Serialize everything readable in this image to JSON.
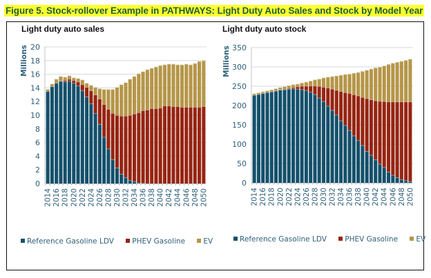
{
  "figure_title": "Figure 5. Stock-rollover Example in PATHWAYS: Light Duty Auto Sales and Stock by Model Year",
  "colors": {
    "reference": "#14506b",
    "phev": "#962512",
    "ev": "#b59649",
    "title_highlight": "#ffff33",
    "title_text": "#1f5f35",
    "axis_text": "#2f5f7a"
  },
  "chart_data": [
    {
      "type": "bar",
      "stacked": true,
      "title": "Light duty auto sales",
      "xlabel": "",
      "ylabel": "Millions",
      "ylim": [
        0,
        20
      ],
      "yticks": [
        0,
        2,
        4,
        6,
        8,
        10,
        12,
        14,
        16,
        18,
        20
      ],
      "grid": true,
      "legend_position": "bottom",
      "categories": [
        "2014",
        "2015",
        "2016",
        "2017",
        "2018",
        "2019",
        "2020",
        "2021",
        "2022",
        "2023",
        "2024",
        "2025",
        "2026",
        "2027",
        "2028",
        "2029",
        "2030",
        "2031",
        "2032",
        "2033",
        "2034",
        "2035",
        "2036",
        "2037",
        "2038",
        "2039",
        "2040",
        "2041",
        "2042",
        "2043",
        "2044",
        "2045",
        "2046",
        "2047",
        "2048",
        "2049",
        "2050"
      ],
      "xtick_labels": [
        "2014",
        "2016",
        "2018",
        "2020",
        "2022",
        "2024",
        "2026",
        "2028",
        "2030",
        "2032",
        "2034",
        "2036",
        "2038",
        "2040",
        "2042",
        "2044",
        "2046",
        "2048",
        "2050"
      ],
      "series": [
        {
          "name": "Reference Gasoline LDV",
          "values": [
            13.5,
            14.2,
            14.7,
            15.0,
            14.9,
            15.0,
            14.7,
            14.3,
            13.6,
            12.7,
            11.7,
            10.3,
            8.7,
            6.8,
            5.1,
            3.5,
            2.3,
            1.4,
            0.9,
            0.5,
            0.3,
            0.1,
            0.05,
            0,
            0,
            0,
            0,
            0,
            0,
            0,
            0,
            0,
            0,
            0,
            0,
            0,
            0
          ]
        },
        {
          "name": "PHEV Gasoline",
          "values": [
            0,
            0,
            0,
            0.05,
            0.2,
            0.3,
            0.4,
            0.6,
            0.9,
            1.4,
            1.9,
            2.7,
            3.7,
            4.8,
            5.8,
            6.8,
            7.7,
            8.5,
            9.0,
            9.5,
            9.9,
            10.3,
            10.65,
            10.8,
            11.0,
            11.0,
            11.1,
            11.4,
            11.4,
            11.3,
            11.3,
            11.2,
            11.2,
            11.2,
            11.2,
            11.2,
            11.3
          ]
        },
        {
          "name": "EV",
          "values": [
            0.3,
            0.4,
            0.6,
            0.65,
            0.5,
            0.5,
            0.4,
            0.5,
            0.7,
            0.6,
            0.8,
            1.1,
            1.5,
            2.2,
            2.9,
            3.5,
            4.1,
            4.6,
            4.9,
            5.3,
            5.5,
            5.7,
            5.7,
            5.9,
            5.9,
            6.1,
            6.2,
            6.0,
            6.1,
            6.2,
            6.1,
            6.2,
            6.3,
            6.2,
            6.4,
            6.7,
            6.7
          ]
        }
      ]
    },
    {
      "type": "bar",
      "stacked": true,
      "title": "Light duty auto stock",
      "xlabel": "",
      "ylabel": "Millions",
      "ylim": [
        0,
        350
      ],
      "yticks": [
        0,
        50,
        100,
        150,
        200,
        250,
        300,
        350
      ],
      "grid": true,
      "legend_position": "bottom",
      "categories": [
        "2014",
        "2015",
        "2016",
        "2017",
        "2018",
        "2019",
        "2020",
        "2021",
        "2022",
        "2023",
        "2024",
        "2025",
        "2026",
        "2027",
        "2028",
        "2029",
        "2030",
        "2031",
        "2032",
        "2033",
        "2034",
        "2035",
        "2036",
        "2037",
        "2038",
        "2039",
        "2040",
        "2041",
        "2042",
        "2043",
        "2044",
        "2045",
        "2046",
        "2047",
        "2048",
        "2049",
        "2050"
      ],
      "xtick_labels": [
        "2014",
        "2016",
        "2018",
        "2020",
        "2022",
        "2024",
        "2026",
        "2028",
        "2030",
        "2032",
        "2034",
        "2036",
        "2038",
        "2040",
        "2042",
        "2044",
        "2046",
        "2048",
        "2050"
      ],
      "series": [
        {
          "name": "Reference Gasoline LDV",
          "values": [
            227,
            229,
            231.5,
            234,
            236,
            238,
            240.5,
            241.5,
            243,
            243.5,
            243,
            241.5,
            239.5,
            235,
            229,
            220,
            211,
            199,
            188,
            176,
            161,
            149,
            136,
            122,
            110,
            97,
            82,
            72,
            60,
            49,
            40,
            28,
            20,
            14,
            9,
            6,
            4
          ]
        },
        {
          "name": "PHEV Gasoline",
          "values": [
            0,
            0,
            0,
            0,
            0.5,
            1,
            1,
            1.5,
            2,
            3.5,
            6,
            9,
            11,
            16,
            22,
            30,
            37,
            47,
            55,
            64,
            76,
            85,
            96,
            106.5,
            115.5,
            124.5,
            136.5,
            143.5,
            153,
            162.5,
            171,
            182,
            190,
            196,
            201,
            204,
            206
          ]
        },
        {
          "name": "EV",
          "values": [
            4,
            4.5,
            4.5,
            4.5,
            4.5,
            5,
            5.5,
            6.5,
            7,
            7.5,
            7,
            8.5,
            10.5,
            13,
            16,
            19,
            24,
            28,
            32.5,
            37,
            42,
            47,
            50,
            55.5,
            60.5,
            67.5,
            73.5,
            79.5,
            85,
            88.5,
            92,
            97,
            100,
            102.5,
            105,
            107.5,
            110.5
          ]
        }
      ]
    }
  ]
}
